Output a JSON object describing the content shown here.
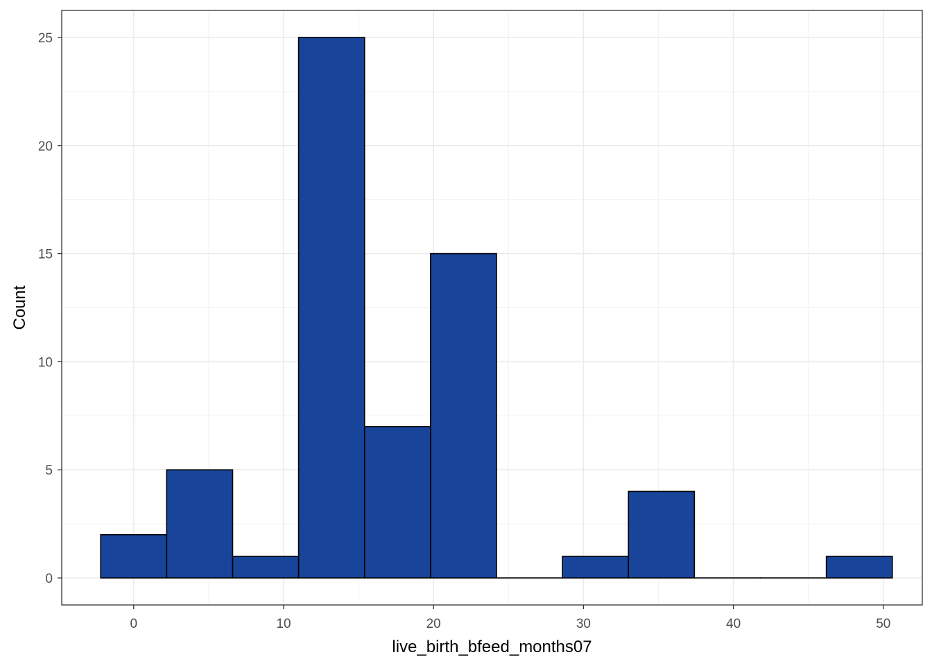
{
  "chart_data": {
    "type": "bar",
    "xlabel": "live_birth_bfeed_months07",
    "ylabel": "Count",
    "xlim": [
      -4.8,
      52.6
    ],
    "ylim": [
      -1.25,
      26.25
    ],
    "x_ticks": [
      0,
      10,
      20,
      30,
      40,
      50
    ],
    "y_ticks": [
      0,
      5,
      10,
      15,
      20,
      25
    ],
    "bins": [
      {
        "x0": -2.2,
        "x1": 2.2,
        "count": 2
      },
      {
        "x0": 2.2,
        "x1": 6.6,
        "count": 5
      },
      {
        "x0": 6.6,
        "x1": 11.0,
        "count": 1
      },
      {
        "x0": 11.0,
        "x1": 15.4,
        "count": 25
      },
      {
        "x0": 15.4,
        "x1": 19.8,
        "count": 7
      },
      {
        "x0": 19.8,
        "x1": 24.2,
        "count": 15
      },
      {
        "x0": 24.2,
        "x1": 28.6,
        "count": 0
      },
      {
        "x0": 28.6,
        "x1": 33.0,
        "count": 1
      },
      {
        "x0": 33.0,
        "x1": 37.4,
        "count": 4
      },
      {
        "x0": 37.4,
        "x1": 41.8,
        "count": 0
      },
      {
        "x0": 41.8,
        "x1": 46.2,
        "count": 0
      },
      {
        "x0": 46.2,
        "x1": 50.6,
        "count": 1
      }
    ],
    "bar_fill": "#18449a",
    "bar_stroke": "#000000",
    "grid": true,
    "legend": "none"
  }
}
